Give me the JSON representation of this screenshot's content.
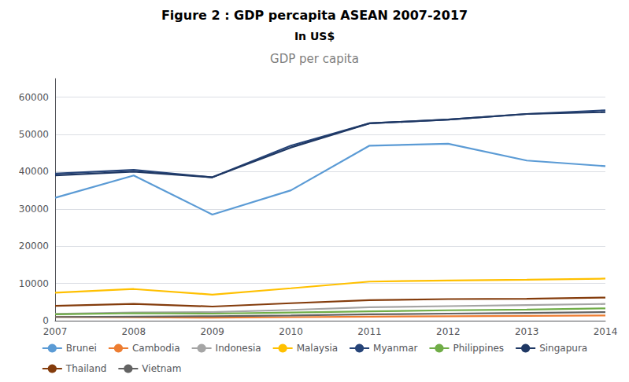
{
  "chart_data": {
    "type": "line",
    "title": "Figure 2 : GDP percapita ASEAN 2007-2017",
    "subtitle": "In US$",
    "annotations": [
      "GDP per capita"
    ],
    "categories": [
      "2007",
      "2008",
      "2009",
      "2010",
      "2011",
      "2012",
      "2013",
      "2014"
    ],
    "series": [
      {
        "name": "Brunei",
        "color": "#5B9BD5",
        "values": [
          33000,
          39000,
          28500,
          35000,
          47000,
          47500,
          43000,
          41500
        ]
      },
      {
        "name": "Cambodia",
        "color": "#ED7D31",
        "values": [
          1000,
          900,
          800,
          950,
          1100,
          1200,
          1300,
          1400
        ]
      },
      {
        "name": "Indonesia",
        "color": "#A5A5A5",
        "values": [
          1800,
          2200,
          2300,
          2900,
          3600,
          3900,
          4200,
          4500
        ]
      },
      {
        "name": "Malaysia",
        "color": "#FFC000",
        "values": [
          7500,
          8500,
          7000,
          8700,
          10500,
          10800,
          11000,
          11300
        ]
      },
      {
        "name": "Myanmar",
        "color": "#264478",
        "values": [
          39500,
          40500,
          38500,
          47000,
          53000,
          54000,
          55500,
          56500
        ]
      },
      {
        "name": "Philippines",
        "color": "#70AD47",
        "values": [
          1700,
          2000,
          1900,
          2200,
          2500,
          2800,
          3000,
          3300
        ]
      },
      {
        "name": "Singapura",
        "color": "#1F3864",
        "values": [
          39000,
          40000,
          38500,
          46500,
          53000,
          54000,
          55500,
          56000
        ]
      },
      {
        "name": "Thailand",
        "color": "#843C0C",
        "values": [
          4000,
          4500,
          3800,
          4700,
          5500,
          5800,
          5900,
          6200
        ]
      },
      {
        "name": "Vietnam",
        "color": "#636363",
        "values": [
          1000,
          1100,
          1200,
          1400,
          1700,
          1900,
          2100,
          2300
        ]
      }
    ],
    "ylim": [
      0,
      65000
    ],
    "yticks": [
      0,
      10000,
      20000,
      30000,
      40000,
      50000,
      60000
    ],
    "grid": true,
    "legend": "bottom"
  }
}
